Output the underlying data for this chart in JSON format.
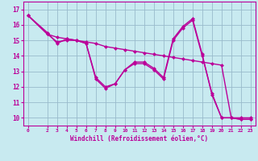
{
  "bg_color": "#c8eaf0",
  "line_color": "#bb0099",
  "grid_color": "#99bbcc",
  "xlabel": "Windchill (Refroidissement éolien,°C)",
  "xlim": [
    -0.5,
    23.5
  ],
  "ylim": [
    9.5,
    17.5
  ],
  "xticks": [
    0,
    2,
    3,
    4,
    5,
    6,
    7,
    8,
    9,
    10,
    11,
    12,
    13,
    14,
    15,
    16,
    17,
    18,
    19,
    20,
    21,
    22,
    23
  ],
  "yticks": [
    10,
    11,
    12,
    13,
    14,
    15,
    16,
    17
  ],
  "line1_x": [
    0,
    2,
    3,
    4,
    5,
    6,
    7,
    8,
    9,
    10,
    11,
    12,
    13,
    14,
    15,
    16,
    17,
    18,
    19,
    20,
    21,
    22,
    23
  ],
  "line1_y": [
    16.6,
    15.4,
    15.2,
    15.1,
    15.0,
    14.9,
    14.8,
    14.6,
    14.5,
    14.4,
    14.3,
    14.2,
    14.1,
    14.0,
    13.9,
    13.8,
    13.7,
    13.6,
    13.5,
    13.4,
    10.0,
    10.0,
    10.0
  ],
  "line2_x": [
    0,
    2,
    3,
    4,
    5,
    6,
    7,
    8,
    9,
    10,
    11,
    12,
    13,
    14,
    15,
    16,
    17,
    18,
    19,
    20,
    21,
    22,
    23
  ],
  "line2_y": [
    16.6,
    15.5,
    14.8,
    15.1,
    15.0,
    14.8,
    12.5,
    11.9,
    12.2,
    13.1,
    13.6,
    13.6,
    13.2,
    12.6,
    15.1,
    15.9,
    16.4,
    14.1,
    11.5,
    10.0,
    10.0,
    9.9,
    9.9
  ],
  "line3_x": [
    0,
    2,
    3,
    4,
    5,
    6,
    7,
    8,
    9,
    10,
    11,
    12,
    13,
    14,
    15,
    16,
    17,
    18,
    19,
    20,
    21,
    22,
    23
  ],
  "line3_y": [
    16.6,
    15.4,
    14.9,
    15.0,
    15.0,
    14.8,
    12.6,
    12.0,
    12.2,
    13.1,
    13.5,
    13.5,
    13.1,
    12.5,
    15.0,
    15.8,
    16.3,
    14.0,
    11.6,
    10.0,
    10.0,
    9.9,
    9.9
  ],
  "marker_size": 2.5,
  "line_width": 1.0
}
